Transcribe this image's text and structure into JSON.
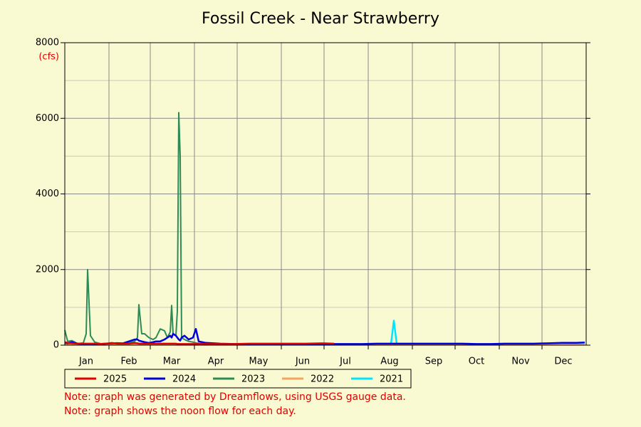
{
  "chart_data": {
    "type": "line",
    "title": "Fossil Creek - Near Strawberry",
    "y_label": "(cfs)",
    "x": [
      1,
      3,
      6,
      10,
      14,
      16,
      17,
      19,
      22,
      26,
      30,
      34,
      38,
      42,
      46,
      50,
      52,
      53,
      55,
      57,
      60,
      63,
      65,
      68,
      71,
      73,
      75,
      76,
      77,
      79,
      80,
      81,
      82,
      83,
      85,
      88,
      91,
      93,
      95,
      100,
      110,
      120,
      130,
      140,
      150,
      160,
      170,
      182,
      190,
      200,
      210,
      220,
      230,
      232,
      234,
      240,
      250,
      260,
      270,
      280,
      290,
      300,
      310,
      320,
      330,
      340,
      350,
      360,
      366
    ],
    "xlim": [
      1,
      367
    ],
    "xticks": [
      {
        "value": 16,
        "label": "Jan"
      },
      {
        "value": 46,
        "label": "Feb"
      },
      {
        "value": 76,
        "label": "Mar"
      },
      {
        "value": 107,
        "label": "Apr"
      },
      {
        "value": 137,
        "label": "May"
      },
      {
        "value": 168,
        "label": "Jun"
      },
      {
        "value": 198,
        "label": "Jul"
      },
      {
        "value": 229,
        "label": "Aug"
      },
      {
        "value": 260,
        "label": "Sep"
      },
      {
        "value": 290,
        "label": "Oct"
      },
      {
        "value": 321,
        "label": "Nov"
      },
      {
        "value": 351,
        "label": "Dec"
      }
    ],
    "xgrid": [
      32,
      61,
      92,
      122,
      153,
      183,
      214,
      245,
      275,
      306,
      336
    ],
    "ylim": [
      0,
      8000
    ],
    "yticks": [
      0,
      2000,
      4000,
      6000,
      8000
    ],
    "minor_ygrid": [
      1000,
      3000,
      5000,
      7000
    ],
    "grid": true,
    "series": [
      {
        "name": "2025",
        "color": "#e00000",
        "values": [
          80,
          60,
          50,
          40,
          40,
          40,
          40,
          40,
          40,
          30,
          40,
          60,
          40,
          40,
          40,
          60,
          50,
          40,
          40,
          40,
          40,
          40,
          40,
          40,
          40,
          40,
          40,
          40,
          40,
          40,
          30,
          30,
          30,
          30,
          30,
          30,
          30,
          30,
          30,
          30,
          30,
          30,
          40,
          40,
          40,
          40,
          40,
          50,
          40,
          null,
          null,
          null,
          null,
          null,
          null,
          null,
          null,
          null,
          null,
          null,
          null,
          null,
          null,
          null,
          null,
          null,
          null,
          null,
          null
        ]
      },
      {
        "name": "2024",
        "color": "#0000dd",
        "values": [
          60,
          50,
          80,
          40,
          30,
          30,
          30,
          30,
          30,
          30,
          40,
          50,
          50,
          50,
          100,
          150,
          150,
          120,
          100,
          80,
          60,
          80,
          100,
          100,
          150,
          200,
          250,
          200,
          300,
          250,
          200,
          150,
          120,
          200,
          250,
          150,
          200,
          430,
          100,
          60,
          40,
          30,
          30,
          30,
          30,
          30,
          30,
          20,
          30,
          30,
          30,
          40,
          40,
          40,
          40,
          40,
          40,
          40,
          40,
          40,
          30,
          30,
          40,
          40,
          40,
          50,
          60,
          60,
          70
        ]
      },
      {
        "name": "2023",
        "color": "#2e8b57",
        "values": [
          400,
          100,
          120,
          40,
          60,
          300,
          2000,
          250,
          80,
          40,
          40,
          50,
          60,
          40,
          60,
          100,
          200,
          1070,
          300,
          300,
          200,
          150,
          200,
          430,
          380,
          200,
          350,
          1050,
          300,
          250,
          900,
          6150,
          5000,
          200,
          150,
          100,
          80,
          60,
          50,
          40,
          30,
          30,
          30,
          30,
          30,
          30,
          30,
          30,
          20,
          null,
          null,
          null,
          null,
          null,
          null,
          null,
          null,
          null,
          null,
          null,
          null,
          null,
          null,
          null,
          null,
          null,
          null,
          null,
          null
        ]
      },
      {
        "name": "2022",
        "color": "#f4a460",
        "values": [
          15,
          15,
          15,
          15,
          15,
          15,
          15,
          15,
          15,
          15,
          15,
          15,
          15,
          15,
          15,
          15,
          15,
          15,
          15,
          15,
          15,
          15,
          15,
          15,
          15,
          15,
          15,
          15,
          15,
          15,
          15,
          15,
          15,
          15,
          15,
          15,
          15,
          15,
          15,
          15,
          15,
          15,
          15,
          15,
          15,
          15,
          15,
          15,
          15,
          15,
          15,
          15,
          15,
          15,
          15,
          15,
          15,
          15,
          15,
          15,
          15,
          15,
          15,
          15,
          15,
          15,
          15,
          15,
          15
        ]
      },
      {
        "name": "2021",
        "color": "#00e5ff",
        "values": [
          null,
          null,
          null,
          null,
          null,
          null,
          null,
          null,
          null,
          null,
          null,
          null,
          null,
          null,
          null,
          null,
          null,
          null,
          null,
          null,
          null,
          null,
          null,
          null,
          null,
          null,
          null,
          null,
          null,
          null,
          null,
          null,
          null,
          null,
          null,
          null,
          null,
          null,
          null,
          null,
          null,
          null,
          null,
          null,
          null,
          null,
          null,
          null,
          null,
          20,
          20,
          20,
          30,
          650,
          30,
          20,
          20,
          20,
          20,
          20,
          20,
          20,
          20,
          20,
          20,
          20,
          20,
          20,
          20
        ]
      }
    ],
    "notes": [
      "Note: graph was generated by Dreamflows, using USGS gauge data.",
      "Note: graph shows the noon flow for each day."
    ]
  }
}
